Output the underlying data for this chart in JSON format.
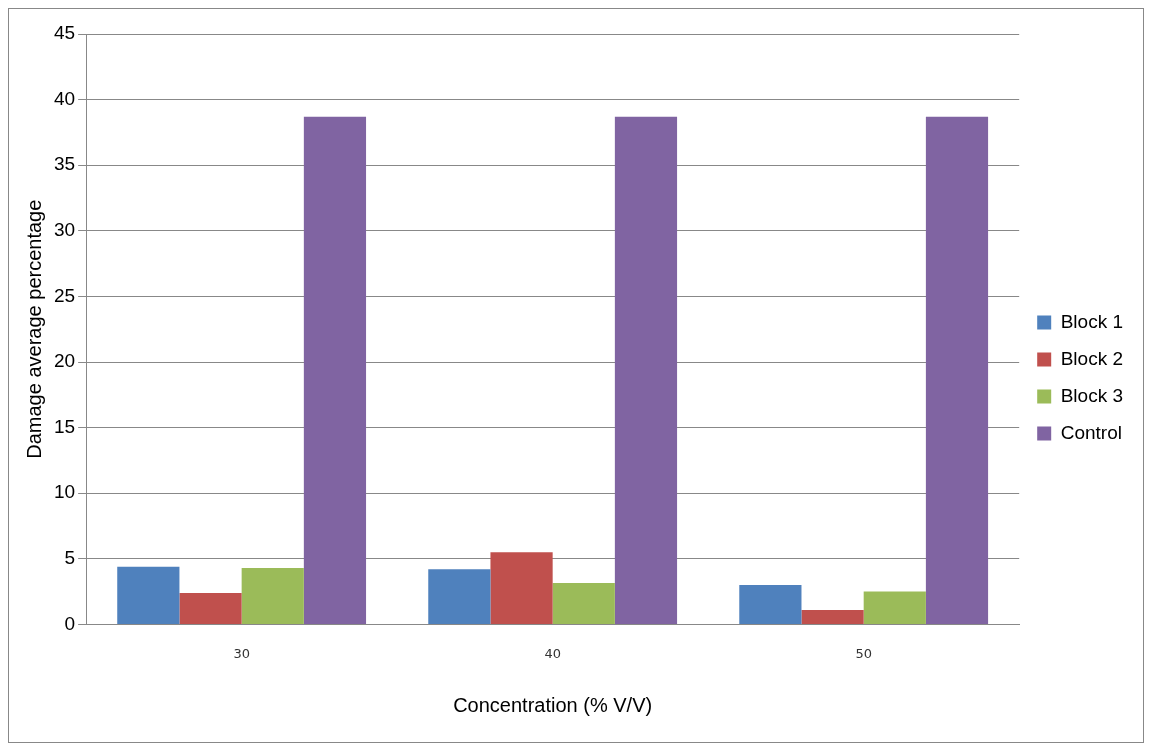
{
  "chart_data": {
    "type": "bar",
    "xlabel": "Concentration (% V/V)",
    "ylabel": "Damage average percentage",
    "categories": [
      "30",
      "40",
      "50"
    ],
    "series": [
      {
        "name": "Block 1",
        "color": "#4f81bd",
        "values": [
          4.4,
          4.2,
          3.0
        ]
      },
      {
        "name": "Block 2",
        "color": "#c0504d",
        "values": [
          2.4,
          5.5,
          1.1
        ]
      },
      {
        "name": "Block 3",
        "color": "#9bbb59",
        "values": [
          4.3,
          3.15,
          2.5
        ]
      },
      {
        "name": "Control",
        "color": "#8064a2",
        "values": [
          38.7,
          38.7,
          38.7
        ]
      }
    ],
    "ylim": [
      0,
      45
    ],
    "yticks": [
      0,
      5,
      10,
      15,
      20,
      25,
      30,
      35,
      40,
      45
    ],
    "grid": "y",
    "legend": "right"
  }
}
